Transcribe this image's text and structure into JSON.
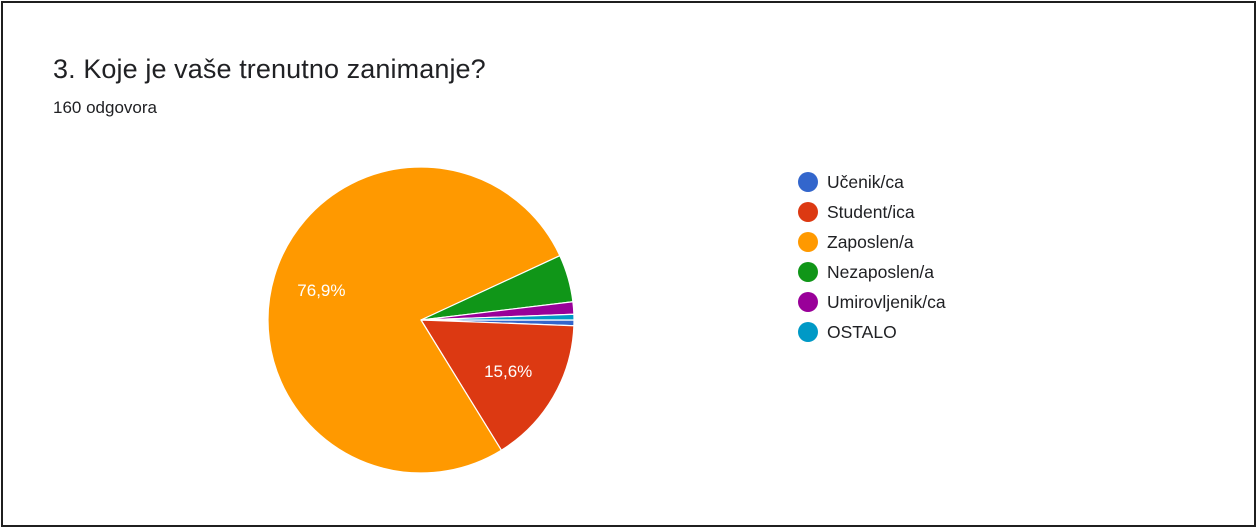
{
  "header": {
    "title": "3. Koje je vaše trenutno zanimanje?",
    "response_count": "160 odgovora"
  },
  "chart_data": {
    "type": "pie",
    "title": "3. Koje je vaše trenutno zanimanje?",
    "start_angle_deg": 90,
    "direction": "clockwise",
    "legend_position": "right",
    "slices": [
      {
        "label": "Učenik/ca",
        "value": 0.6,
        "color": "#3366cc",
        "data_label": ""
      },
      {
        "label": "Student/ica",
        "value": 15.6,
        "color": "#dc3912",
        "data_label": "15,6%"
      },
      {
        "label": "Zaposlen/a",
        "value": 76.9,
        "color": "#ff9900",
        "data_label": "76,9%"
      },
      {
        "label": "Nezaposlen/a",
        "value": 5.0,
        "color": "#109618",
        "data_label": ""
      },
      {
        "label": "Umirovljenik/ca",
        "value": 1.3,
        "color": "#990099",
        "data_label": ""
      },
      {
        "label": "OSTALO",
        "value": 0.6,
        "color": "#0099c6",
        "data_label": ""
      }
    ]
  }
}
